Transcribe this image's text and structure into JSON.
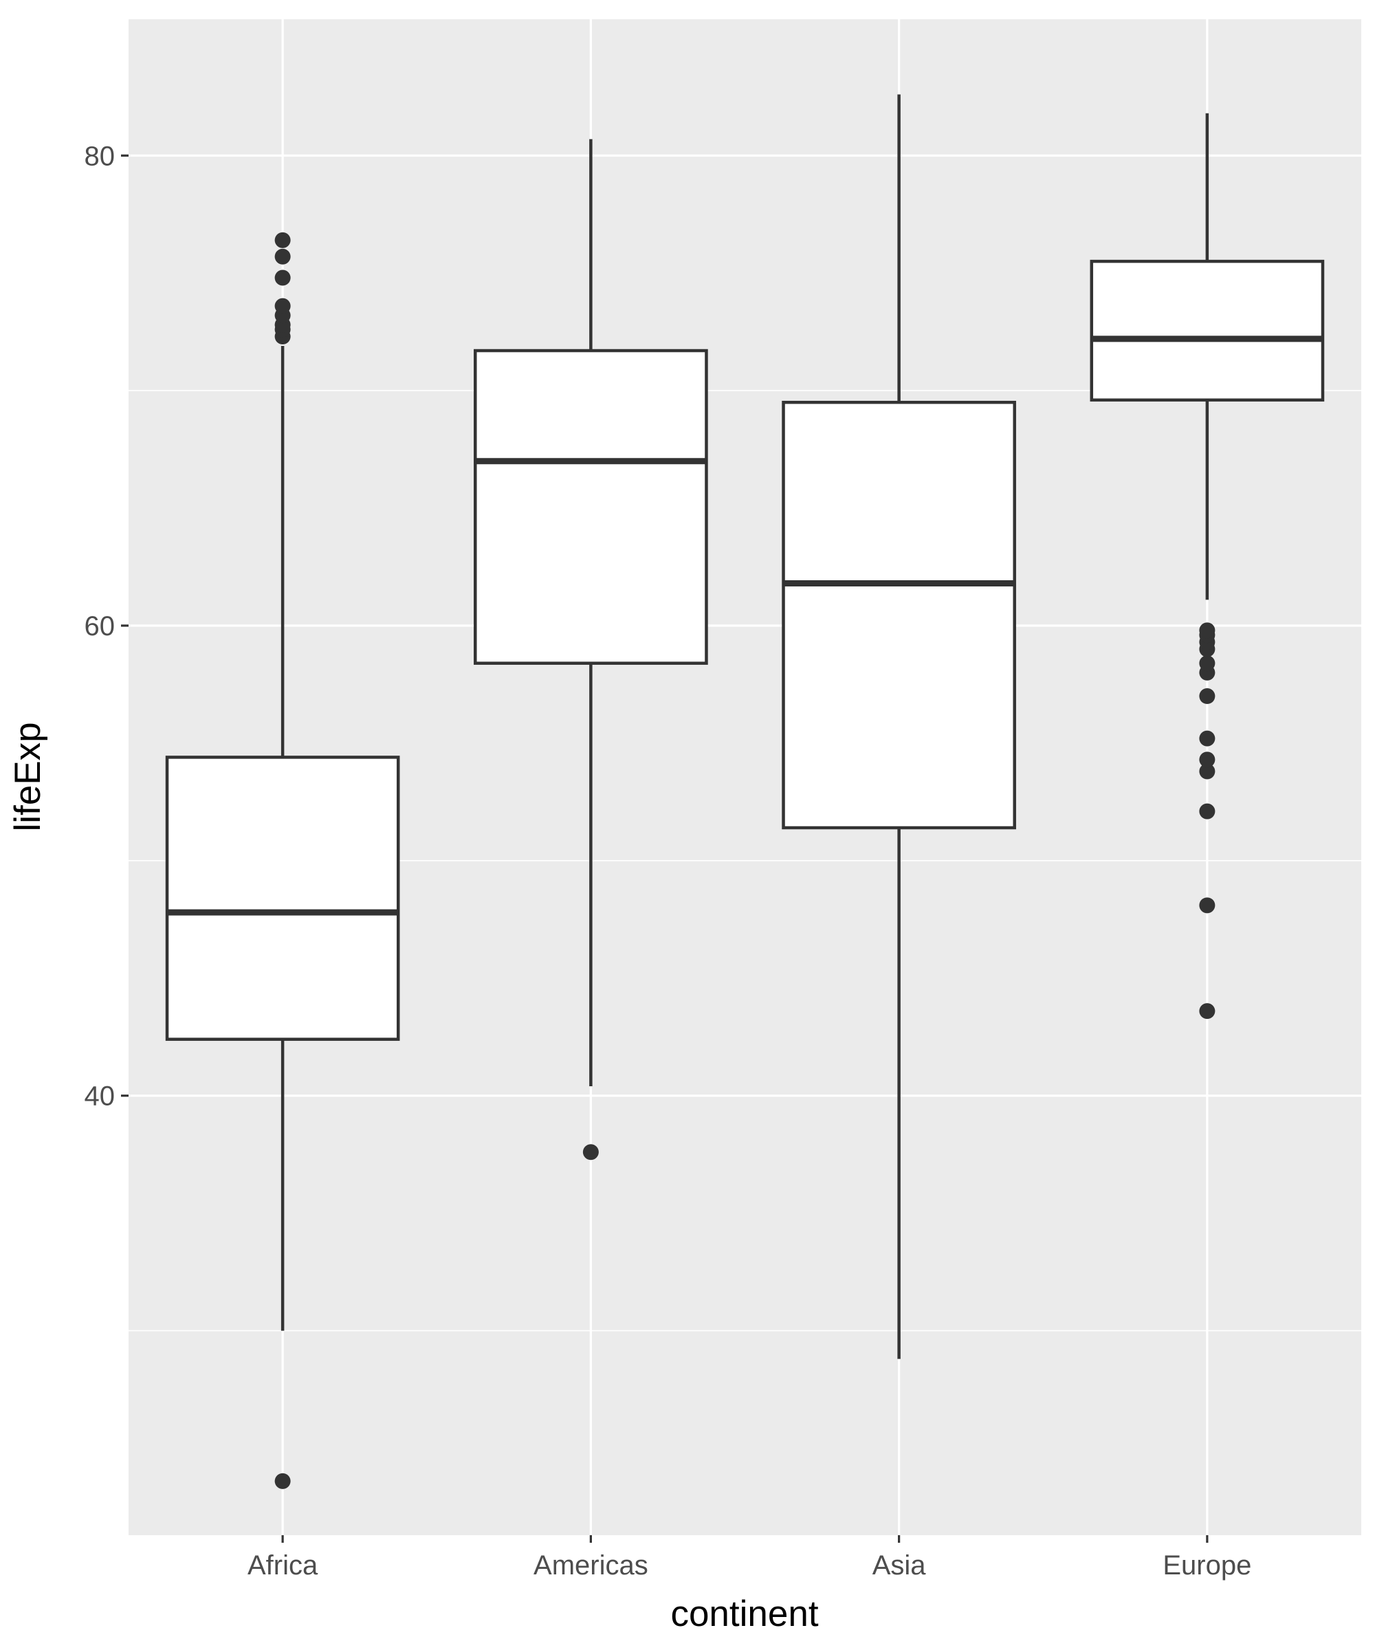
{
  "chart_data": {
    "type": "boxplot",
    "title": "",
    "xlabel": "continent",
    "ylabel": "lifeExp",
    "ylim": [
      21.3,
      85.8
    ],
    "y_ticks": [
      40,
      60,
      80
    ],
    "y_minor_ticks": [
      30,
      50,
      70
    ],
    "grid": true,
    "colors": {
      "panel": "#EBEBEB",
      "grid": "#FFFFFF",
      "box_fill": "#FFFFFF",
      "box_line": "#333333",
      "tick_text": "#4D4D4D"
    },
    "categories": [
      "Africa",
      "Americas",
      "Asia",
      "Europe"
    ],
    "boxes": [
      {
        "category": "Africa",
        "whisker_low": 30.0,
        "q1": 42.4,
        "median": 47.8,
        "q3": 54.4,
        "whisker_high": 71.9,
        "outliers": [
          23.6,
          72.3,
          72.6,
          72.8,
          73.2,
          73.6,
          74.8,
          75.7,
          76.4
        ]
      },
      {
        "category": "Americas",
        "whisker_low": 40.4,
        "q1": 58.4,
        "median": 67.0,
        "q3": 71.7,
        "whisker_high": 80.7,
        "outliers": [
          37.6
        ]
      },
      {
        "category": "Asia",
        "whisker_low": 28.8,
        "q1": 51.4,
        "median": 61.8,
        "q3": 69.5,
        "whisker_high": 82.6,
        "outliers": []
      },
      {
        "category": "Europe",
        "whisker_low": 61.1,
        "q1": 69.6,
        "median": 72.2,
        "q3": 75.5,
        "whisker_high": 81.8,
        "outliers": [
          43.6,
          48.1,
          52.1,
          53.8,
          54.3,
          55.2,
          57.0,
          58.0,
          58.4,
          59.0,
          59.3,
          59.6,
          59.8
        ]
      }
    ]
  }
}
